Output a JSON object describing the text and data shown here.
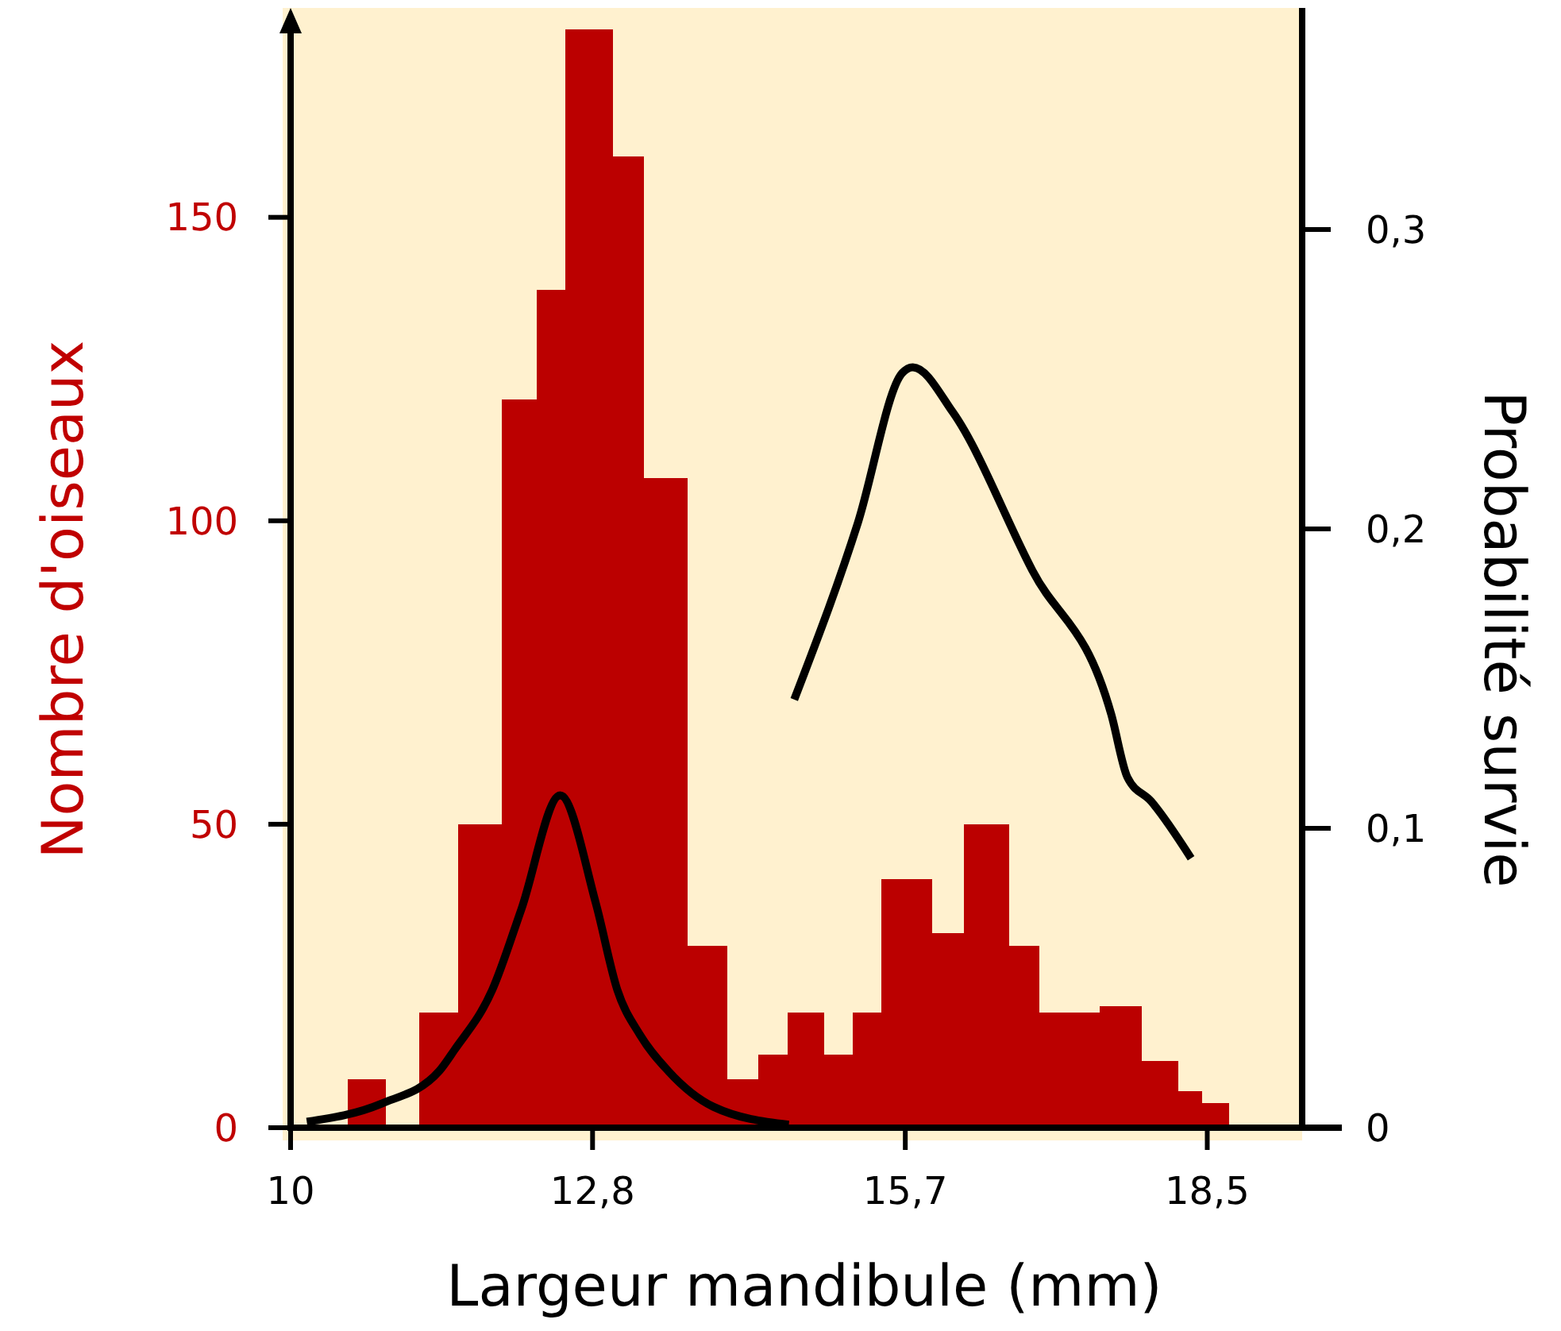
{
  "chart_data": {
    "type": "histogram",
    "xlabel": "Largeur mandibule (mm)",
    "ylabel": "Nombre d'oiseaux",
    "y2label": "Probabilité survie",
    "bins": [
      10.53,
      10.88,
      11.19,
      11.55,
      11.96,
      12.28,
      12.55,
      12.99,
      13.28,
      13.68,
      14.05,
      14.34,
      14.61,
      14.95,
      15.21,
      15.48,
      15.95,
      16.24,
      16.66,
      16.94,
      17.16,
      17.5,
      17.89,
      18.23,
      18.45,
      18.7
    ],
    "values": [
      8,
      0,
      19,
      50,
      120,
      138,
      181,
      160,
      107,
      30,
      8,
      12,
      19,
      12,
      19,
      41,
      32,
      50,
      30,
      19,
      19,
      20,
      11,
      6,
      4
    ],
    "color": "#bb0000",
    "series": [
      {
        "type": "line",
        "axis": "y2",
        "color": "#000000",
        "x": [
          10.15,
          10.84,
          11.38,
          11.52,
          11.87,
          12.14,
          12.5,
          12.83,
          13.03,
          13.24,
          13.5,
          13.92,
          14.62
        ],
        "values": [
          0.002,
          0.008,
          0.019,
          0.026,
          0.046,
          0.073,
          0.111,
          0.075,
          0.046,
          0.031,
          0.019,
          0.007,
          0.001
        ]
      },
      {
        "type": "line",
        "axis": "y2",
        "color": "#000000",
        "x": [
          14.67,
          15.26,
          15.67,
          15.77,
          16.14,
          16.88,
          17.61,
          17.76,
          17.98,
          18.35
        ],
        "values": [
          0.143,
          0.202,
          0.252,
          0.254,
          0.239,
          0.186,
          0.138,
          0.117,
          0.109,
          0.09
        ]
      }
    ],
    "xlim": [
      10,
      19.38
    ],
    "xticks": [
      10,
      {
        "value": 12.8,
        "label": "12,8"
      },
      {
        "value": 15.7,
        "label": "15,7"
      },
      {
        "value": 18.5,
        "label": "18,5"
      }
    ],
    "ylim": [
      0,
      184.5
    ],
    "yticks": [
      0,
      50,
      100,
      150
    ],
    "y2lim": [
      0,
      0.374
    ],
    "y2ticks": [
      0,
      {
        "value": 0.1,
        "label": "0,1"
      },
      {
        "value": 0.2,
        "label": "0,2"
      },
      {
        "value": 0.3,
        "label": "0,3"
      }
    ],
    "grid": false,
    "marker": "none",
    "line_style": "solid"
  }
}
